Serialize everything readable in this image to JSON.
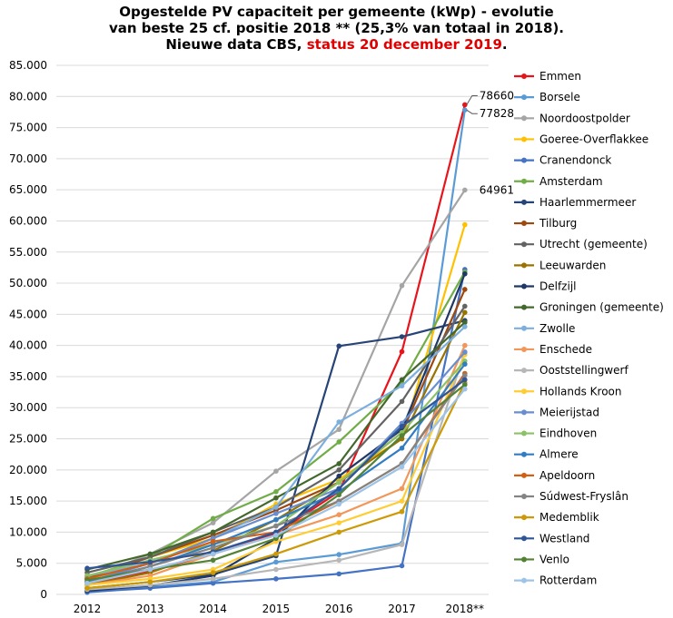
{
  "title": {
    "line1": "Opgestelde PV capaciteit per gemeente (kWp) - evolutie",
    "line2": "van beste 25 cf. positie 2018 ** (25,3% van totaal in 2018).",
    "line3_prefix": "Nieuwe data CBS, ",
    "line3_highlight": "status 20 december 2019",
    "line3_suffix": "."
  },
  "chart_data": {
    "type": "line",
    "title": "Opgestelde PV capaciteit per gemeente (kWp) - evolutie van beste 25 cf. positie 2018 ** (25,3% van totaal in 2018). Nieuwe data CBS, status 20 december 2019.",
    "xlabel": "",
    "ylabel": "",
    "x": [
      "2012",
      "2013",
      "2014",
      "2015",
      "2016",
      "2017",
      "2018**"
    ],
    "ylim": [
      0,
      85000
    ],
    "y_ticks": [
      0,
      5000,
      10000,
      15000,
      20000,
      25000,
      30000,
      35000,
      40000,
      45000,
      50000,
      55000,
      60000,
      65000,
      70000,
      75000,
      80000,
      85000
    ],
    "y_tick_labels": [
      "0",
      "5.000",
      "10.000",
      "15.000",
      "20.000",
      "25.000",
      "30.000",
      "35.000",
      "40.000",
      "45.000",
      "50.000",
      "55.000",
      "60.000",
      "65.000",
      "70.000",
      "75.000",
      "80.000",
      "85.000"
    ],
    "grid": true,
    "legend_position": "right",
    "annotations": [
      {
        "label": "78660",
        "series": "Emmen"
      },
      {
        "label": "77828",
        "series": "Borsele"
      },
      {
        "label": "64961",
        "series": "Noordoostpolder"
      }
    ],
    "series": [
      {
        "name": "Emmen",
        "color": "#e8141c",
        "values": [
          1500,
          3800,
          6500,
          9800,
          16500,
          39000,
          78660
        ]
      },
      {
        "name": "Borsele",
        "color": "#5b9bd5",
        "values": [
          300,
          1200,
          2000,
          5200,
          6400,
          8200,
          77828
        ]
      },
      {
        "name": "Noordoostpolder",
        "color": "#a5a5a5",
        "values": [
          2500,
          6500,
          11500,
          19800,
          26500,
          49600,
          64961
        ]
      },
      {
        "name": "Goeree-Overflakkee",
        "color": "#ffc000",
        "values": [
          2800,
          6000,
          9000,
          14500,
          18500,
          25000,
          59400
        ]
      },
      {
        "name": "Cranendonck",
        "color": "#4472c4",
        "values": [
          400,
          1000,
          1800,
          2500,
          3300,
          4600,
          52200
        ]
      },
      {
        "name": "Amsterdam",
        "color": "#70ad47",
        "values": [
          2800,
          6000,
          12200,
          16500,
          24500,
          34000,
          51800
        ]
      },
      {
        "name": "Haarlemmermeer",
        "color": "#264478",
        "values": [
          1000,
          2000,
          3200,
          6200,
          39900,
          41400,
          44000
        ]
      },
      {
        "name": "Tilburg",
        "color": "#9e480e",
        "values": [
          2500,
          6000,
          9500,
          13500,
          18000,
          26000,
          49000
        ]
      },
      {
        "name": "Utrecht (gemeente)",
        "color": "#636363",
        "values": [
          3500,
          6000,
          10000,
          14000,
          20000,
          31000,
          46300
        ]
      },
      {
        "name": "Leeuwarden",
        "color": "#997300",
        "values": [
          1500,
          3500,
          7000,
          12000,
          18000,
          25000,
          45300
        ]
      },
      {
        "name": "Delfzijl",
        "color": "#1f3864",
        "values": [
          600,
          1400,
          3000,
          9000,
          19000,
          26500,
          51500
        ]
      },
      {
        "name": "Groningen (gemeente)",
        "color": "#43682b",
        "values": [
          4000,
          6500,
          10000,
          15500,
          21000,
          34500,
          43700
        ]
      },
      {
        "name": "Zwolle",
        "color": "#7cafdd",
        "values": [
          3000,
          5000,
          9000,
          14000,
          27700,
          33500,
          43000
        ]
      },
      {
        "name": "Enschede",
        "color": "#f1975a",
        "values": [
          1500,
          3000,
          6500,
          9500,
          12800,
          17000,
          40000
        ]
      },
      {
        "name": "Ooststellingwerf",
        "color": "#b7b7b7",
        "values": [
          800,
          1500,
          2500,
          4000,
          5500,
          8000,
          39000
        ]
      },
      {
        "name": "Hollands Kroon",
        "color": "#ffcd33",
        "values": [
          1500,
          2500,
          4000,
          8500,
          11500,
          15000,
          38500
        ]
      },
      {
        "name": "Meierijstad",
        "color": "#698ed0",
        "values": [
          2000,
          5000,
          9000,
          13000,
          17000,
          27500,
          38900
        ]
      },
      {
        "name": "Eindhoven",
        "color": "#8cc168",
        "values": [
          3000,
          5500,
          8000,
          11000,
          18000,
          26000,
          37500
        ]
      },
      {
        "name": "Almere",
        "color": "#327dc2",
        "values": [
          2000,
          4500,
          8000,
          12000,
          16500,
          23500,
          37000
        ]
      },
      {
        "name": "Apeldoorn",
        "color": "#d26012",
        "values": [
          2500,
          5000,
          8500,
          10000,
          15000,
          21000,
          35500
        ]
      },
      {
        "name": "Súdwest-Fryslân",
        "color": "#848484",
        "values": [
          1800,
          4500,
          7500,
          11000,
          15000,
          21000,
          35200
        ]
      },
      {
        "name": "Medemblik",
        "color": "#cc9a06",
        "values": [
          1000,
          2000,
          3500,
          6500,
          10000,
          13300,
          34000
        ]
      },
      {
        "name": "Westland",
        "color": "#2f5597",
        "values": [
          4200,
          5200,
          6800,
          10000,
          17000,
          27000,
          34500
        ]
      },
      {
        "name": "Venlo",
        "color": "#548235",
        "values": [
          2300,
          4000,
          5500,
          9000,
          16000,
          25500,
          33700
        ]
      },
      {
        "name": "Rotterdam",
        "color": "#9dc3e6",
        "values": [
          1800,
          4000,
          6500,
          9500,
          14500,
          20500,
          33000
        ]
      }
    ]
  }
}
